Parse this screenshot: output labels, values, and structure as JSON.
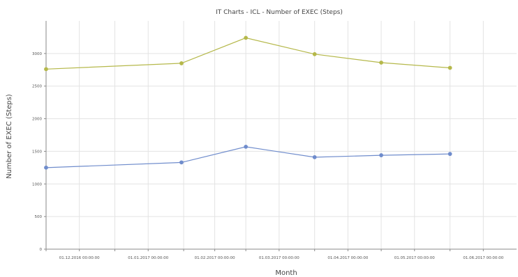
{
  "chart_data": {
    "type": "line",
    "title": "IT Charts - ICL - Number of EXEC (Steps)",
    "xlabel": "Month",
    "ylabel": "Number of EXEC (Steps)",
    "ylim": [
      0,
      3500
    ],
    "yticks": [
      0,
      500,
      1000,
      1500,
      2000,
      2500,
      3000
    ],
    "xlim": [
      "2016-12-01",
      "2017-07-01"
    ],
    "xtick_labels": [
      {
        "date": "2016-12-01",
        "label": "01.12.2016 00:00:00"
      },
      {
        "date": "2017-01-01",
        "label": "01.01.2017 00:00:00"
      },
      {
        "date": "2017-02-01",
        "label": "01.02.2017 00:00:00"
      },
      {
        "date": "2017-03-01",
        "label": "01.03.2017 00:00:00"
      },
      {
        "date": "2017-04-01",
        "label": "01.04.2017 00:00:00"
      },
      {
        "date": "2017-05-01",
        "label": "01.05.2017 00:00:00"
      },
      {
        "date": "2017-06-01",
        "label": "01.06.2017 00:00:00"
      }
    ],
    "grid": true,
    "series": [
      {
        "color": "#b5b84a",
        "points": [
          {
            "x": "2016-12-01",
            "y": 2760
          },
          {
            "x": "2017-01-31",
            "y": 2850
          },
          {
            "x": "2017-03-01",
            "y": 3240
          },
          {
            "x": "2017-04-01",
            "y": 2990
          },
          {
            "x": "2017-05-01",
            "y": 2860
          },
          {
            "x": "2017-06-01",
            "y": 2780
          }
        ]
      },
      {
        "color": "#6f8ccc",
        "points": [
          {
            "x": "2016-12-01",
            "y": 1250
          },
          {
            "x": "2017-01-31",
            "y": 1330
          },
          {
            "x": "2017-03-01",
            "y": 1570
          },
          {
            "x": "2017-04-01",
            "y": 1410
          },
          {
            "x": "2017-05-01",
            "y": 1440
          },
          {
            "x": "2017-06-01",
            "y": 1460
          }
        ]
      }
    ]
  }
}
